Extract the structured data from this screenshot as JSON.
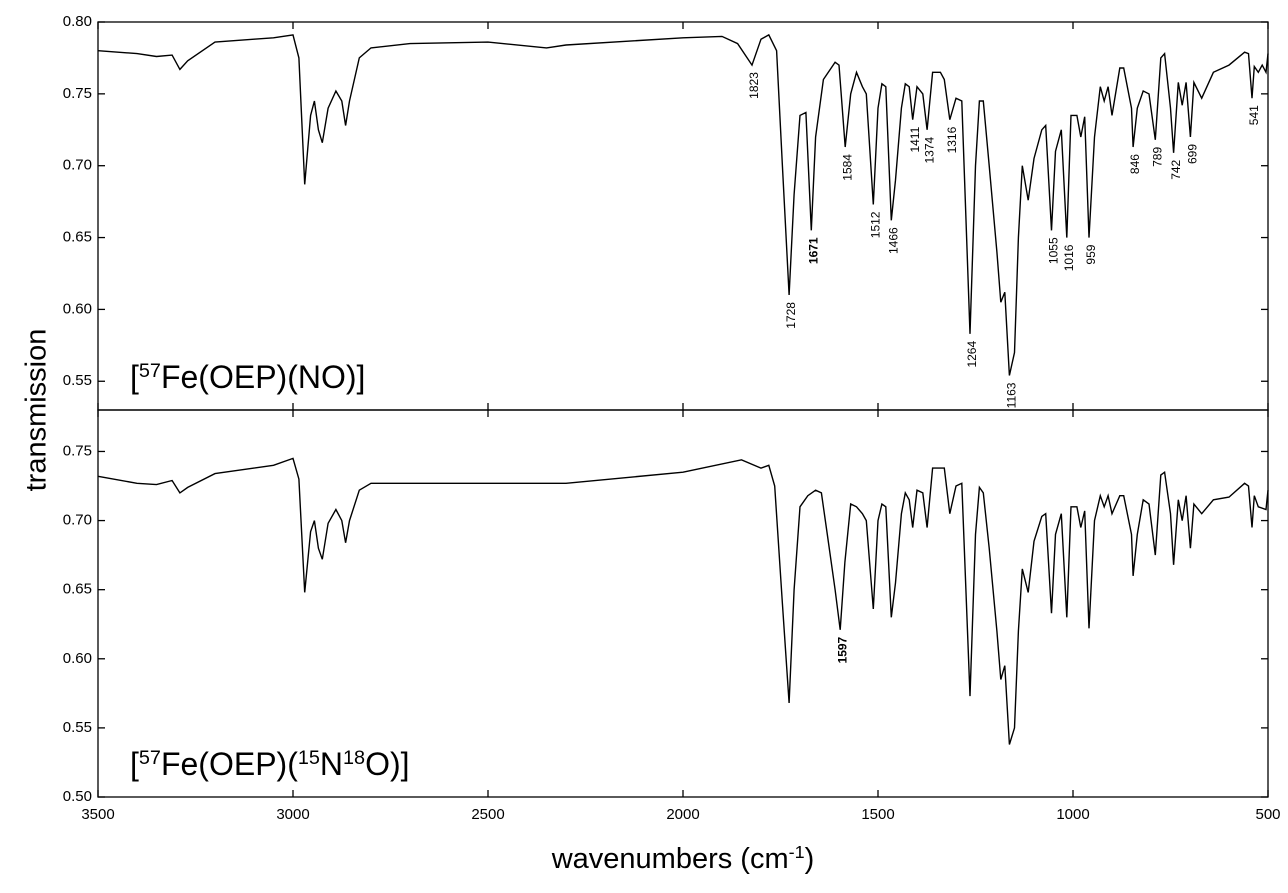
{
  "chart_data": [
    {
      "type": "line",
      "ylabel": "transmission",
      "label": [
        "[",
        "57",
        "Fe(OEP)(NO)]"
      ],
      "xlim": [
        3500,
        500
      ],
      "ylim": [
        0.53,
        0.8
      ],
      "yticks": [
        {
          "value": 0.55,
          "label": "0.55"
        },
        {
          "value": 0.6,
          "label": "0.60"
        },
        {
          "value": 0.65,
          "label": "0.65"
        },
        {
          "value": 0.7,
          "label": "0.70"
        },
        {
          "value": 0.75,
          "label": "0.75"
        },
        {
          "value": 0.8,
          "label": "0.80"
        }
      ],
      "series": [
        {
          "color": "#000000",
          "x": [
            3500,
            3400,
            3350,
            3310,
            3290,
            3270,
            3200,
            3100,
            3050,
            3000,
            2985,
            2970,
            2955,
            2945,
            2935,
            2925,
            2910,
            2890,
            2875,
            2865,
            2855,
            2830,
            2800,
            2700,
            2500,
            2350,
            2300,
            2000,
            1900,
            1860,
            1823,
            1800,
            1780,
            1760,
            1745,
            1728,
            1715,
            1700,
            1685,
            1671,
            1660,
            1640,
            1610,
            1600,
            1584,
            1570,
            1555,
            1540,
            1530,
            1512,
            1500,
            1490,
            1480,
            1466,
            1455,
            1440,
            1430,
            1420,
            1411,
            1400,
            1385,
            1374,
            1360,
            1340,
            1330,
            1316,
            1300,
            1285,
            1264,
            1250,
            1240,
            1230,
            1215,
            1195,
            1185,
            1175,
            1163,
            1150,
            1140,
            1130,
            1115,
            1100,
            1080,
            1070,
            1055,
            1045,
            1030,
            1016,
            1005,
            990,
            980,
            970,
            959,
            945,
            930,
            920,
            910,
            900,
            880,
            870,
            850,
            846,
            835,
            820,
            805,
            789,
            775,
            765,
            750,
            742,
            730,
            720,
            710,
            699,
            690,
            670,
            640,
            600,
            560,
            550,
            541,
            535,
            525,
            515,
            505,
            500
          ],
          "values": [
            0.78,
            0.778,
            0.776,
            0.777,
            0.767,
            0.773,
            0.786,
            0.788,
            0.789,
            0.791,
            0.775,
            0.687,
            0.735,
            0.745,
            0.725,
            0.716,
            0.74,
            0.752,
            0.745,
            0.728,
            0.745,
            0.775,
            0.782,
            0.785,
            0.786,
            0.782,
            0.784,
            0.789,
            0.79,
            0.785,
            0.77,
            0.788,
            0.791,
            0.78,
            0.7,
            0.61,
            0.68,
            0.735,
            0.737,
            0.655,
            0.72,
            0.76,
            0.772,
            0.77,
            0.713,
            0.75,
            0.765,
            0.755,
            0.75,
            0.673,
            0.74,
            0.757,
            0.755,
            0.662,
            0.69,
            0.74,
            0.757,
            0.755,
            0.732,
            0.755,
            0.75,
            0.725,
            0.765,
            0.765,
            0.76,
            0.732,
            0.747,
            0.745,
            0.583,
            0.7,
            0.745,
            0.745,
            0.7,
            0.64,
            0.605,
            0.612,
            0.554,
            0.57,
            0.65,
            0.7,
            0.676,
            0.705,
            0.725,
            0.728,
            0.655,
            0.71,
            0.725,
            0.65,
            0.735,
            0.735,
            0.72,
            0.734,
            0.65,
            0.72,
            0.755,
            0.745,
            0.755,
            0.735,
            0.768,
            0.768,
            0.74,
            0.713,
            0.74,
            0.752,
            0.75,
            0.718,
            0.775,
            0.778,
            0.74,
            0.709,
            0.758,
            0.742,
            0.758,
            0.72,
            0.758,
            0.747,
            0.765,
            0.77,
            0.779,
            0.778,
            0.747,
            0.769,
            0.765,
            0.77,
            0.765,
            0.778
          ]
        }
      ],
      "peaks": [
        {
          "label": "1823"
        },
        {
          "label": "1728"
        },
        {
          "label": "1671",
          "bold": true
        },
        {
          "label": "1584"
        },
        {
          "label": "1512"
        },
        {
          "label": "1466"
        },
        {
          "label": "1411"
        },
        {
          "label": "1374"
        },
        {
          "label": "1316"
        },
        {
          "label": "1264"
        },
        {
          "label": "1163"
        },
        {
          "label": "1055"
        },
        {
          "label": "1016"
        },
        {
          "label": "959"
        },
        {
          "label": "846"
        },
        {
          "label": "789"
        },
        {
          "label": "742"
        },
        {
          "label": "699"
        },
        {
          "label": "541"
        }
      ]
    },
    {
      "type": "line",
      "xlabel": [
        "wavenumbers (cm",
        "-1",
        ")"
      ],
      "label": [
        "[",
        "57",
        "Fe(OEP)(",
        "15",
        "N",
        "18",
        "O)]"
      ],
      "xlim": [
        3500,
        500
      ],
      "xticks": [
        3500,
        3000,
        2500,
        2000,
        1500,
        1000,
        500
      ],
      "ylim": [
        0.5,
        0.78
      ],
      "yticks": [
        {
          "value": 0.5,
          "label": "0.50"
        },
        {
          "value": 0.55,
          "label": "0.55"
        },
        {
          "value": 0.6,
          "label": "0.60"
        },
        {
          "value": 0.65,
          "label": "0.65"
        },
        {
          "value": 0.7,
          "label": "0.70"
        },
        {
          "value": 0.75,
          "label": "0.75"
        }
      ],
      "series": [
        {
          "color": "#000000",
          "x": [
            3500,
            3400,
            3350,
            3310,
            3290,
            3270,
            3200,
            3100,
            3050,
            3000,
            2985,
            2970,
            2955,
            2945,
            2935,
            2925,
            2910,
            2890,
            2875,
            2865,
            2855,
            2830,
            2800,
            2500,
            2300,
            2000,
            1850,
            1800,
            1780,
            1765,
            1745,
            1728,
            1715,
            1700,
            1680,
            1660,
            1645,
            1630,
            1610,
            1597,
            1585,
            1570,
            1555,
            1540,
            1530,
            1512,
            1500,
            1490,
            1480,
            1466,
            1455,
            1440,
            1430,
            1420,
            1411,
            1400,
            1385,
            1374,
            1360,
            1330,
            1316,
            1300,
            1285,
            1264,
            1250,
            1240,
            1230,
            1215,
            1195,
            1185,
            1175,
            1163,
            1150,
            1140,
            1130,
            1115,
            1100,
            1080,
            1070,
            1055,
            1045,
            1030,
            1016,
            1005,
            990,
            980,
            970,
            959,
            945,
            930,
            920,
            910,
            900,
            880,
            870,
            850,
            846,
            835,
            820,
            805,
            789,
            775,
            765,
            750,
            742,
            730,
            720,
            710,
            699,
            690,
            670,
            640,
            600,
            560,
            550,
            541,
            535,
            525,
            505,
            500
          ],
          "values": [
            0.732,
            0.727,
            0.726,
            0.729,
            0.72,
            0.724,
            0.734,
            0.738,
            0.74,
            0.745,
            0.73,
            0.648,
            0.692,
            0.7,
            0.68,
            0.672,
            0.698,
            0.708,
            0.7,
            0.684,
            0.7,
            0.722,
            0.727,
            0.727,
            0.727,
            0.735,
            0.744,
            0.738,
            0.74,
            0.725,
            0.64,
            0.568,
            0.65,
            0.71,
            0.718,
            0.722,
            0.72,
            0.69,
            0.65,
            0.621,
            0.67,
            0.712,
            0.71,
            0.705,
            0.7,
            0.636,
            0.7,
            0.712,
            0.71,
            0.63,
            0.655,
            0.705,
            0.72,
            0.715,
            0.695,
            0.722,
            0.72,
            0.695,
            0.738,
            0.738,
            0.705,
            0.725,
            0.727,
            0.573,
            0.69,
            0.724,
            0.72,
            0.68,
            0.62,
            0.585,
            0.595,
            0.538,
            0.55,
            0.62,
            0.665,
            0.648,
            0.685,
            0.703,
            0.705,
            0.633,
            0.69,
            0.705,
            0.63,
            0.71,
            0.71,
            0.695,
            0.707,
            0.622,
            0.7,
            0.718,
            0.71,
            0.718,
            0.705,
            0.718,
            0.718,
            0.69,
            0.66,
            0.69,
            0.715,
            0.712,
            0.675,
            0.733,
            0.735,
            0.705,
            0.668,
            0.715,
            0.7,
            0.718,
            0.68,
            0.712,
            0.705,
            0.715,
            0.717,
            0.727,
            0.725,
            0.695,
            0.718,
            0.71,
            0.708,
            0.722
          ]
        }
      ],
      "peaks": [
        {
          "label": "1597",
          "bold": true
        }
      ]
    }
  ]
}
